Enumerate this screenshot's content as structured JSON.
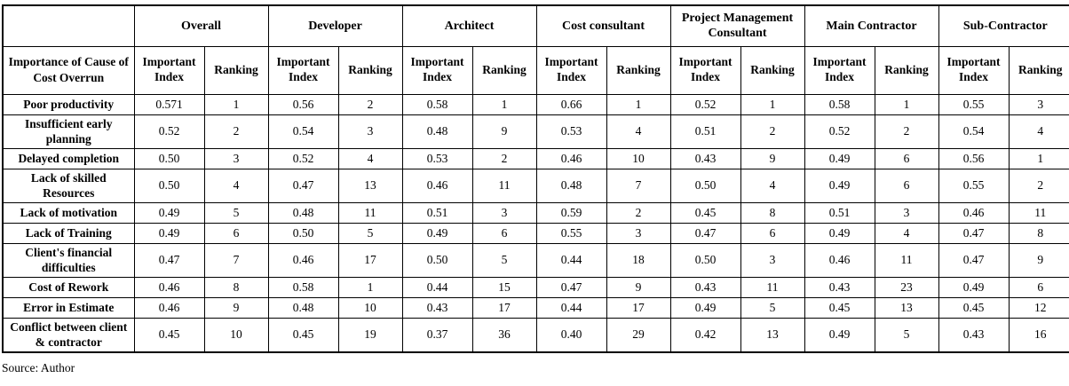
{
  "source_note": "Source: Author",
  "table": {
    "row_header_title": "Importance of Cause of Cost Overrun",
    "groups": [
      "Overall",
      "Developer",
      "Architect",
      "Cost consultant",
      "Project Management Consultant",
      "Main Contractor",
      "Sub-Contractor"
    ],
    "subheaders": [
      "Important Index",
      "Ranking"
    ],
    "rows": [
      {
        "label": "Poor productivity",
        "values": [
          "0.571",
          "1",
          "0.56",
          "2",
          "0.58",
          "1",
          "0.66",
          "1",
          "0.52",
          "1",
          "0.58",
          "1",
          "0.55",
          "3"
        ]
      },
      {
        "label": "Insufficient early planning",
        "values": [
          "0.52",
          "2",
          "0.54",
          "3",
          "0.48",
          "9",
          "0.53",
          "4",
          "0.51",
          "2",
          "0.52",
          "2",
          "0.54",
          "4"
        ]
      },
      {
        "label": "Delayed completion",
        "values": [
          "0.50",
          "3",
          "0.52",
          "4",
          "0.53",
          "2",
          "0.46",
          "10",
          "0.43",
          "9",
          "0.49",
          "6",
          "0.56",
          "1"
        ]
      },
      {
        "label": "Lack of skilled Resources",
        "values": [
          "0.50",
          "4",
          "0.47",
          "13",
          "0.46",
          "11",
          "0.48",
          "7",
          "0.50",
          "4",
          "0.49",
          "6",
          "0.55",
          "2"
        ]
      },
      {
        "label": "Lack of motivation",
        "values": [
          "0.49",
          "5",
          "0.48",
          "11",
          "0.51",
          "3",
          "0.59",
          "2",
          "0.45",
          "8",
          "0.51",
          "3",
          "0.46",
          "11"
        ]
      },
      {
        "label": "Lack of Training",
        "values": [
          "0.49",
          "6",
          "0.50",
          "5",
          "0.49",
          "6",
          "0.55",
          "3",
          "0.47",
          "6",
          "0.49",
          "4",
          "0.47",
          "8"
        ]
      },
      {
        "label": "Client's financial difficulties",
        "values": [
          "0.47",
          "7",
          "0.46",
          "17",
          "0.50",
          "5",
          "0.44",
          "18",
          "0.50",
          "3",
          "0.46",
          "11",
          "0.47",
          "9"
        ]
      },
      {
        "label": "Cost of Rework",
        "values": [
          "0.46",
          "8",
          "0.58",
          "1",
          "0.44",
          "15",
          "0.47",
          "9",
          "0.43",
          "11",
          "0.43",
          "23",
          "0.49",
          "6"
        ]
      },
      {
        "label": "Error in Estimate",
        "values": [
          "0.46",
          "9",
          "0.48",
          "10",
          "0.43",
          "17",
          "0.44",
          "17",
          "0.49",
          "5",
          "0.45",
          "13",
          "0.45",
          "12"
        ]
      },
      {
        "label": "Conflict between client & contractor",
        "values": [
          "0.45",
          "10",
          "0.45",
          "19",
          "0.37",
          "36",
          "0.40",
          "29",
          "0.42",
          "13",
          "0.49",
          "5",
          "0.43",
          "16"
        ]
      }
    ]
  }
}
